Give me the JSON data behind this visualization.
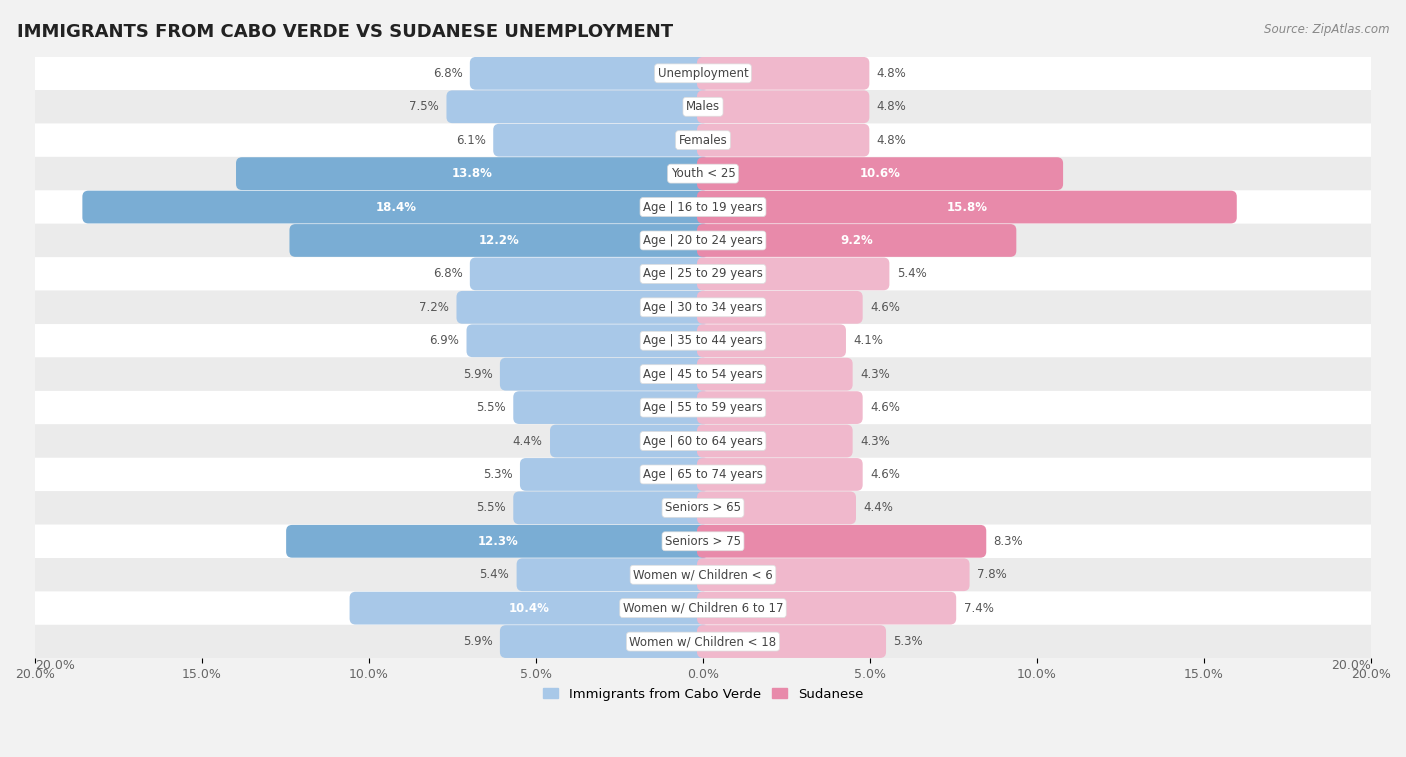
{
  "title": "IMMIGRANTS FROM CABO VERDE VS SUDANESE UNEMPLOYMENT",
  "source": "Source: ZipAtlas.com",
  "categories": [
    "Unemployment",
    "Males",
    "Females",
    "Youth < 25",
    "Age | 16 to 19 years",
    "Age | 20 to 24 years",
    "Age | 25 to 29 years",
    "Age | 30 to 34 years",
    "Age | 35 to 44 years",
    "Age | 45 to 54 years",
    "Age | 55 to 59 years",
    "Age | 60 to 64 years",
    "Age | 65 to 74 years",
    "Seniors > 65",
    "Seniors > 75",
    "Women w/ Children < 6",
    "Women w/ Children 6 to 17",
    "Women w/ Children < 18"
  ],
  "cabo_verde": [
    6.8,
    7.5,
    6.1,
    13.8,
    18.4,
    12.2,
    6.8,
    7.2,
    6.9,
    5.9,
    5.5,
    4.4,
    5.3,
    5.5,
    12.3,
    5.4,
    10.4,
    5.9
  ],
  "sudanese": [
    4.8,
    4.8,
    4.8,
    10.6,
    15.8,
    9.2,
    5.4,
    4.6,
    4.1,
    4.3,
    4.6,
    4.3,
    4.6,
    4.4,
    8.3,
    7.8,
    7.4,
    5.3
  ],
  "cabo_verde_color_normal": "#a8c8e8",
  "cabo_verde_color_highlight": "#7aadd4",
  "sudanese_color_normal": "#f0b8cc",
  "sudanese_color_highlight": "#e88aaa",
  "highlight_rows": [
    3,
    4,
    5,
    14
  ],
  "background_color": "#f2f2f2",
  "row_bg_white": "#ffffff",
  "row_bg_gray": "#e8e8e8",
  "axis_limit": 20.0,
  "legend_label_cabo": "Immigrants from Cabo Verde",
  "legend_label_sudanese": "Sudanese",
  "value_inside_threshold": 9.0
}
